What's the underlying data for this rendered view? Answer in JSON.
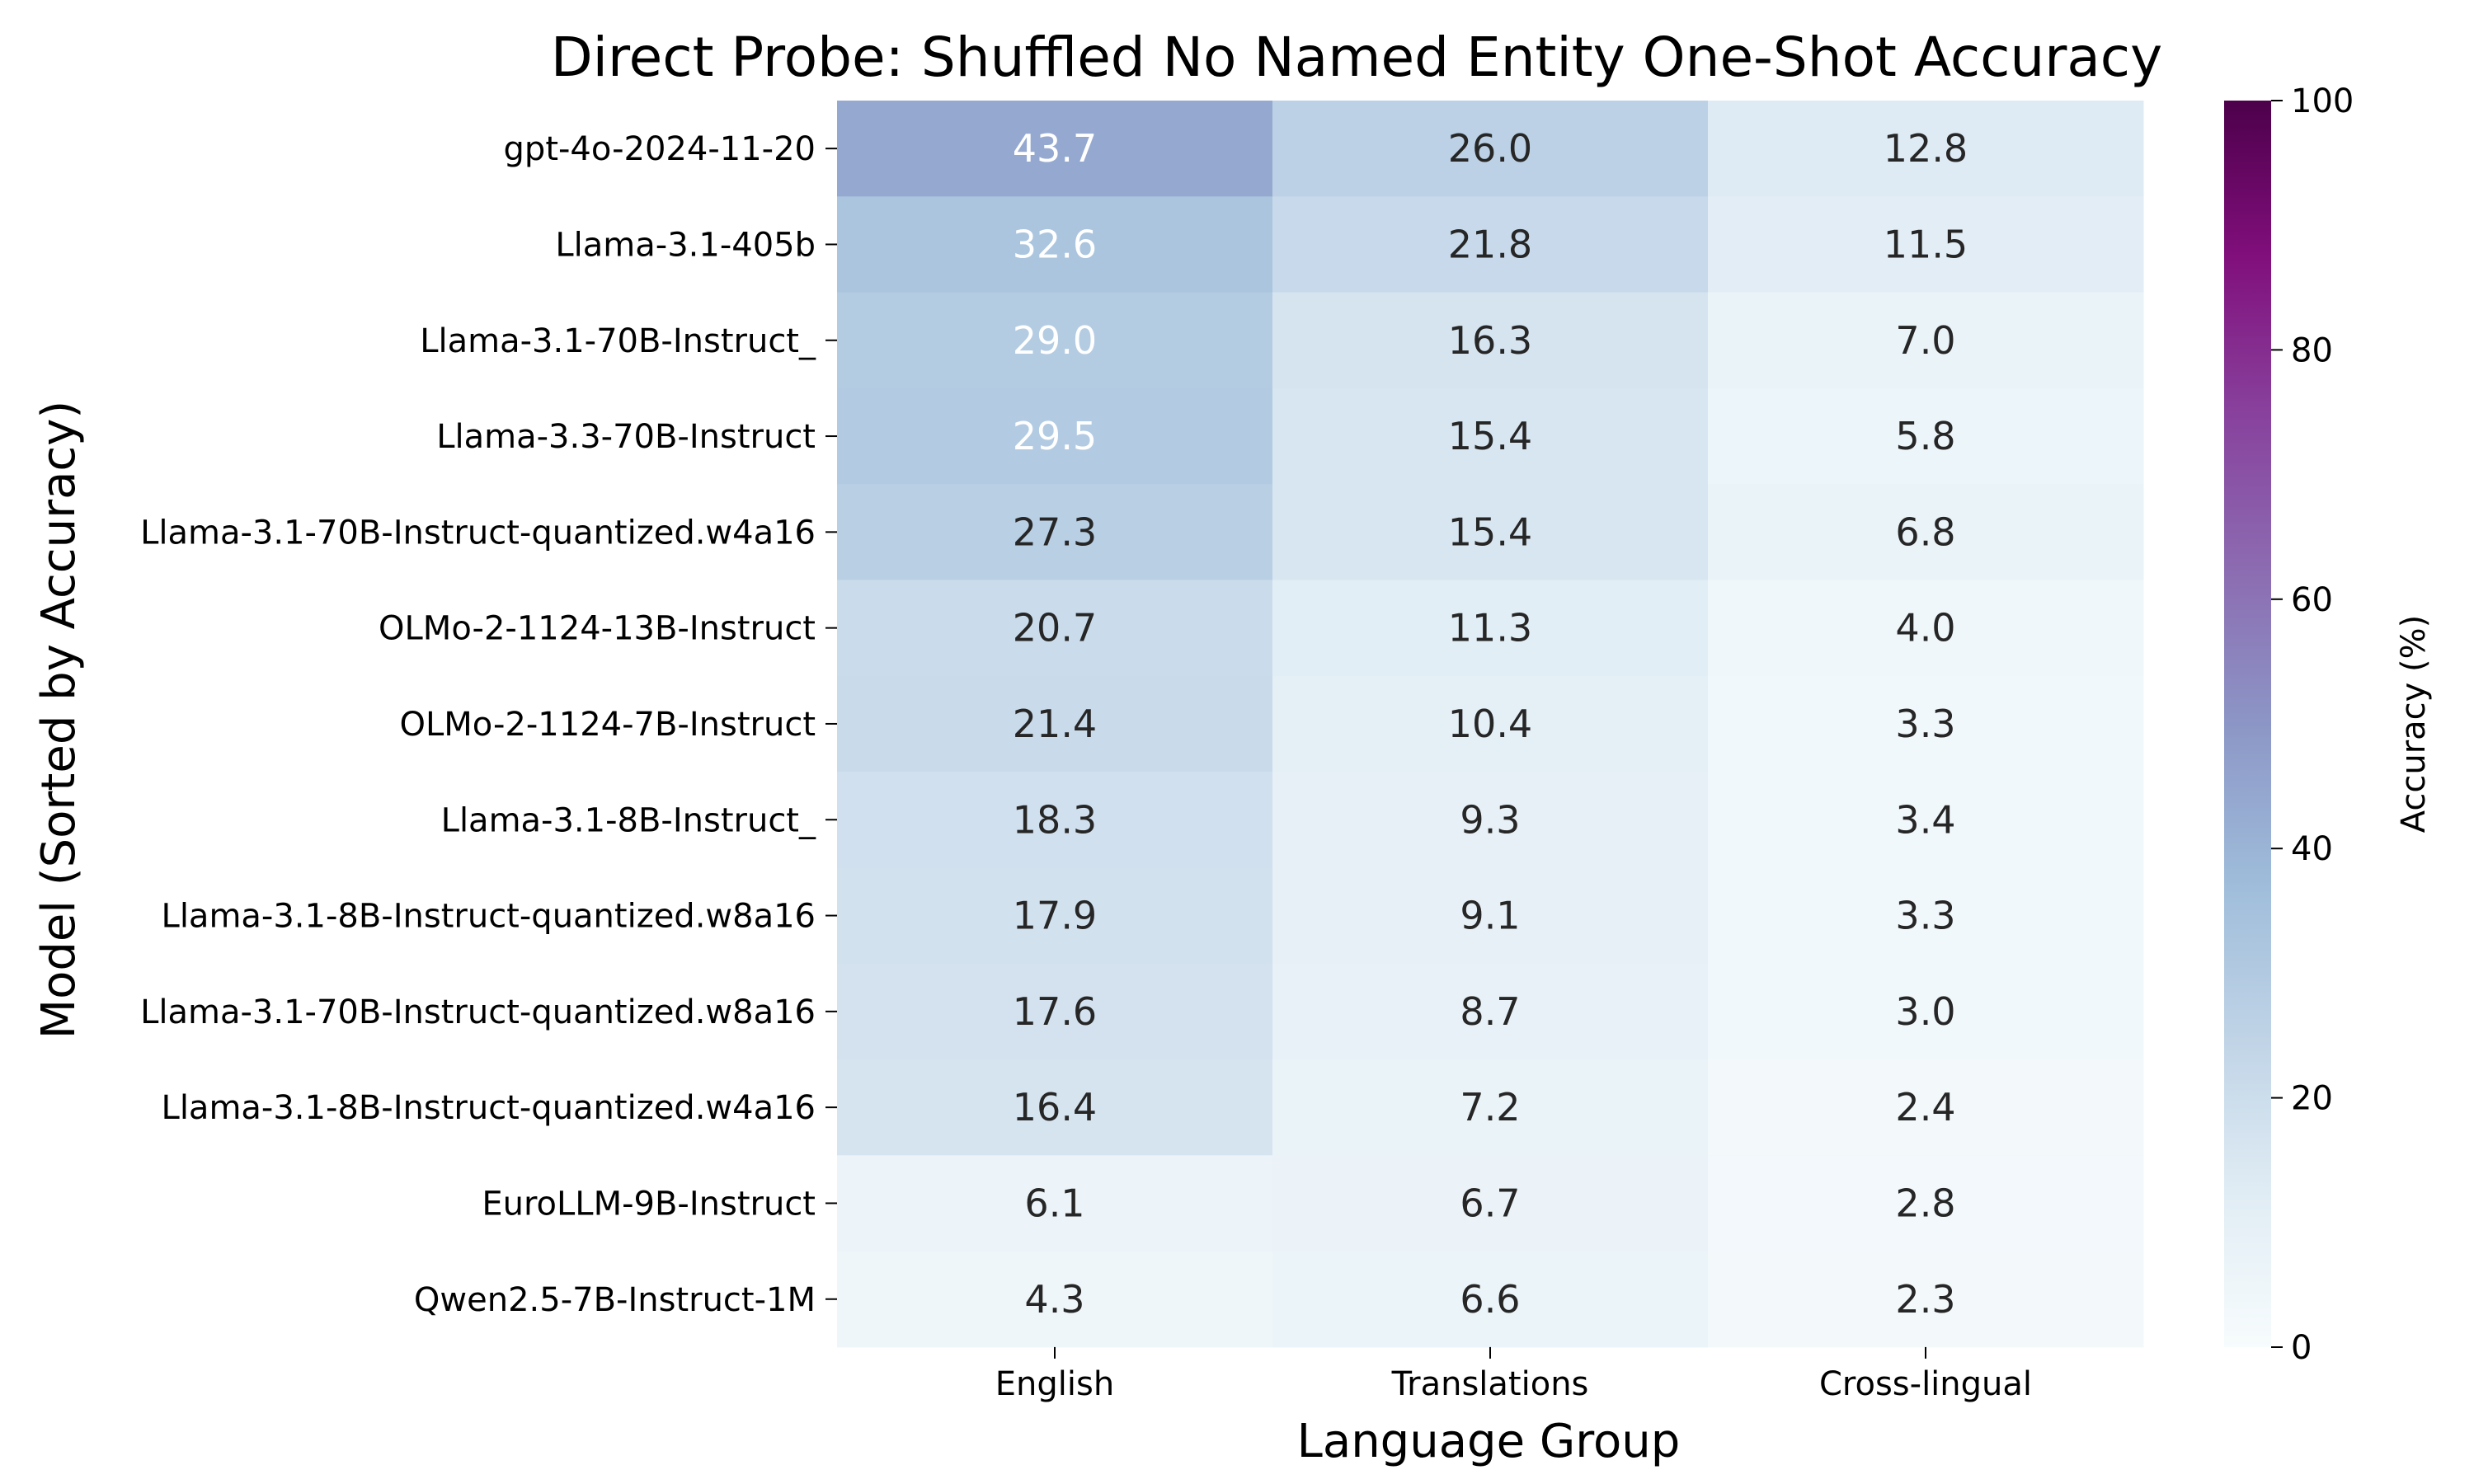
{
  "chart_data": {
    "type": "heatmap",
    "title": "Direct Probe: Shuffled No Named Entity One-Shot Accuracy",
    "xlabel": "Language Group",
    "ylabel": "Model (Sorted by Accuracy)",
    "columns": [
      "English",
      "Translations",
      "Cross-lingual"
    ],
    "rows": [
      "gpt-4o-2024-11-20",
      "Llama-3.1-405b",
      "Llama-3.1-70B-Instruct_",
      "Llama-3.3-70B-Instruct",
      "Llama-3.1-70B-Instruct-quantized.w4a16",
      "OLMo-2-1124-13B-Instruct",
      "OLMo-2-1124-7B-Instruct",
      "Llama-3.1-8B-Instruct_",
      "Llama-3.1-8B-Instruct-quantized.w8a16",
      "Llama-3.1-70B-Instruct-quantized.w8a16",
      "Llama-3.1-8B-Instruct-quantized.w4a16",
      "EuroLLM-9B-Instruct",
      "Qwen2.5-7B-Instruct-1M"
    ],
    "values": [
      [
        43.7,
        26.0,
        12.8
      ],
      [
        32.6,
        21.8,
        11.5
      ],
      [
        29.0,
        16.3,
        7.0
      ],
      [
        29.5,
        15.4,
        5.8
      ],
      [
        27.3,
        15.4,
        6.8
      ],
      [
        20.7,
        11.3,
        4.0
      ],
      [
        21.4,
        10.4,
        3.3
      ],
      [
        18.3,
        9.3,
        3.4
      ],
      [
        17.9,
        9.1,
        3.3
      ],
      [
        17.6,
        8.7,
        3.0
      ],
      [
        16.4,
        7.2,
        2.4
      ],
      [
        6.1,
        6.7,
        2.8
      ],
      [
        4.3,
        6.6,
        2.3
      ]
    ],
    "colorbar": {
      "label": "Accuracy (%)",
      "range": [
        0,
        100
      ],
      "ticks": [
        0,
        20,
        40,
        60,
        80,
        100
      ],
      "colormap": "BuPu"
    }
  }
}
